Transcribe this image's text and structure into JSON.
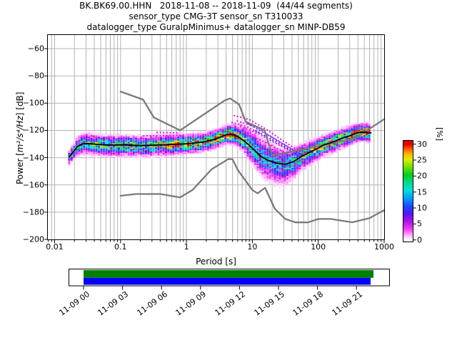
{
  "figure": {
    "title_lines": [
      "BK.BK69.00.HHN   2018-11-08 -- 2018-11-09  (44/44 segments)",
      "sensor_type CMG-3T sensor_sn T310033",
      "datalogger_type GuralpMinimus+ datalogger_sn MINP-DB59"
    ],
    "background": "#ffffff"
  },
  "axes": {
    "xlabel": "Period [s]",
    "ylabel_prefix": "Power [",
    "ylabel_math": "m²/s⁴/Hz",
    "ylabel_suffix": "] [dB]",
    "x_tick_values": [
      0.01,
      0.1,
      1,
      10,
      100,
      1000
    ],
    "x_tick_labels": [
      "0.01",
      "0.1",
      "1",
      "10",
      "100",
      "1000"
    ],
    "y_tick_values": [
      -60,
      -80,
      -100,
      -120,
      -140,
      -160,
      -180,
      -200
    ],
    "y_tick_labels": [
      "−60",
      "−80",
      "−100",
      "−120",
      "−140",
      "−160",
      "−180",
      "−200"
    ],
    "grid_color": "#b4b4b4",
    "frame_color": "#000000"
  },
  "colorbar": {
    "label": "[%]",
    "tick_values": [
      30,
      25,
      20,
      15,
      10,
      5,
      0
    ],
    "tick_labels": [
      "30",
      "25",
      "20",
      "15",
      "10",
      "5",
      "0"
    ],
    "colormap_stops": [
      [
        0.0,
        "#ffffff"
      ],
      [
        0.05,
        "#ffb0ff"
      ],
      [
        0.11,
        "#fa3cfa"
      ],
      [
        0.19,
        "#b414e6"
      ],
      [
        0.27,
        "#5a14f0"
      ],
      [
        0.35,
        "#1e46ff"
      ],
      [
        0.44,
        "#00a0ff"
      ],
      [
        0.52,
        "#00e0dc"
      ],
      [
        0.6,
        "#00dc8c"
      ],
      [
        0.68,
        "#00cd1e"
      ],
      [
        0.77,
        "#78e600"
      ],
      [
        0.84,
        "#e1ee00"
      ],
      [
        0.9,
        "#ffb400"
      ],
      [
        0.95,
        "#ff5a00"
      ],
      [
        1.0,
        "#e10000"
      ]
    ]
  },
  "chart_data": {
    "type": "heatmap",
    "title": "PPSD probabilistic power spectral density",
    "x_scale": "log",
    "xlim_s": [
      0.008,
      1000
    ],
    "ylim_db": [
      -200,
      -50
    ],
    "probability_pct_range": [
      0,
      30
    ],
    "noise_model_color": "#7a7a7a",
    "mode_line_color": "#000000",
    "psd_mode_curve": [
      [
        0.0167,
        -139.5
      ],
      [
        0.019,
        -136.0
      ],
      [
        0.022,
        -132.0
      ],
      [
        0.026,
        -130.0
      ],
      [
        0.032,
        -129.6
      ],
      [
        0.045,
        -130.3
      ],
      [
        0.07,
        -130.8
      ],
      [
        0.12,
        -130.6
      ],
      [
        0.2,
        -131.2
      ],
      [
        0.35,
        -130.8
      ],
      [
        0.6,
        -130.3
      ],
      [
        1.0,
        -129.8
      ],
      [
        1.8,
        -128.6
      ],
      [
        2.8,
        -126.3
      ],
      [
        4.2,
        -122.8
      ],
      [
        5.2,
        -123.2
      ],
      [
        6.5,
        -125.5
      ],
      [
        8.0,
        -128.8
      ],
      [
        10,
        -133.0
      ],
      [
        13,
        -138.6
      ],
      [
        17,
        -141.8
      ],
      [
        23,
        -144.0
      ],
      [
        32,
        -144.8
      ],
      [
        42,
        -143.0
      ],
      [
        57,
        -138.8
      ],
      [
        75,
        -136.0
      ],
      [
        100,
        -133.0
      ],
      [
        120,
        -130.8
      ],
      [
        180,
        -128.0
      ],
      [
        235,
        -125.5
      ],
      [
        300,
        -124.0
      ],
      [
        380,
        -122.0
      ],
      [
        430,
        -121.4
      ],
      [
        530,
        -121.4
      ],
      [
        590,
        -122.0
      ],
      [
        630,
        -121.8
      ]
    ],
    "psd_spread_down_up_peakpct": [
      [
        0.0167,
        2.5,
        2.0,
        14
      ],
      [
        0.022,
        3.0,
        3.0,
        15
      ],
      [
        0.03,
        3.5,
        3.5,
        16
      ],
      [
        0.05,
        3.5,
        3.0,
        20
      ],
      [
        0.1,
        3.5,
        3.0,
        22
      ],
      [
        0.3,
        3.5,
        3.0,
        22
      ],
      [
        0.8,
        3.2,
        3.0,
        24
      ],
      [
        2,
        3.0,
        2.8,
        26
      ],
      [
        4.5,
        2.8,
        2.8,
        30
      ],
      [
        7,
        3.5,
        4.5,
        20
      ],
      [
        10,
        5.0,
        6.0,
        15
      ],
      [
        15,
        6.5,
        6.5,
        13
      ],
      [
        25,
        7.0,
        5.5,
        13
      ],
      [
        38,
        6.0,
        4.5,
        15
      ],
      [
        55,
        4.5,
        4.0,
        18
      ],
      [
        80,
        4.0,
        3.5,
        21
      ],
      [
        120,
        3.5,
        3.0,
        23
      ],
      [
        200,
        3.3,
        3.0,
        25
      ],
      [
        300,
        3.0,
        3.0,
        27
      ],
      [
        430,
        2.8,
        2.8,
        30
      ],
      [
        590,
        2.8,
        2.8,
        30
      ]
    ],
    "noise_model_high_nhnm": [
      [
        0.1,
        -91.5
      ],
      [
        0.22,
        -97.4
      ],
      [
        0.32,
        -110.5
      ],
      [
        0.8,
        -120.0
      ],
      [
        3.8,
        -98.0
      ],
      [
        4.6,
        -96.5
      ],
      [
        6.3,
        -101.0
      ],
      [
        7.9,
        -113.5
      ],
      [
        15.4,
        -120.0
      ],
      [
        20,
        -138.5
      ],
      [
        354.8,
        -126.0
      ],
      [
        1000,
        -111.8
      ]
    ],
    "noise_model_low_nlnm": [
      [
        0.1,
        -168.0
      ],
      [
        0.17,
        -166.7
      ],
      [
        0.4,
        -166.7
      ],
      [
        0.8,
        -169.2
      ],
      [
        1.24,
        -163.7
      ],
      [
        2.4,
        -148.6
      ],
      [
        4.3,
        -141.1
      ],
      [
        5,
        -141.1
      ],
      [
        6,
        -149.0
      ],
      [
        10,
        -163.7
      ],
      [
        12,
        -166.2
      ],
      [
        15.6,
        -162.1
      ],
      [
        21.9,
        -177.5
      ],
      [
        31.6,
        -185.0
      ],
      [
        45,
        -187.5
      ],
      [
        70,
        -187.5
      ],
      [
        101,
        -185.0
      ],
      [
        154,
        -185.0
      ],
      [
        328,
        -187.5
      ],
      [
        600,
        -184.4
      ],
      [
        1000,
        -178.5
      ]
    ],
    "outlier_traces": [
      {
        "color": "#e600e6",
        "points": [
          [
            5.2,
            -109
          ],
          [
            9,
            -112
          ],
          [
            16,
            -119
          ],
          [
            30,
            -128
          ],
          [
            55,
            -136
          ]
        ]
      },
      {
        "color": "#e600e6",
        "points": [
          [
            5.8,
            -113
          ],
          [
            11,
            -117
          ],
          [
            20,
            -125
          ],
          [
            38,
            -133
          ],
          [
            62,
            -139
          ]
        ]
      },
      {
        "color": "#e600e6",
        "points": [
          [
            6.5,
            -117
          ],
          [
            13,
            -123
          ],
          [
            26,
            -131
          ],
          [
            48,
            -138
          ]
        ]
      },
      {
        "color": "#e600e6",
        "points": [
          [
            7.5,
            -122
          ],
          [
            16,
            -129
          ],
          [
            33,
            -137
          ]
        ]
      },
      {
        "color": "#e600e6",
        "points": [
          [
            4.8,
            -114
          ],
          [
            8,
            -117
          ],
          [
            14,
            -123
          ]
        ]
      },
      {
        "color": "#e600e6",
        "points": [
          [
            0.22,
            -124
          ],
          [
            1.0,
            -123.5
          ]
        ]
      },
      {
        "color": "#e600e6",
        "points": [
          [
            0.35,
            -121.5
          ],
          [
            0.75,
            -121.8
          ]
        ]
      },
      {
        "color": "#e600e6",
        "points": [
          [
            400,
            -118.5
          ],
          [
            590,
            -118.0
          ]
        ]
      },
      {
        "color": "#e600e6",
        "points": [
          [
            380,
            -127.0
          ],
          [
            560,
            -126.5
          ]
        ]
      },
      {
        "color": "#2a2af0",
        "points": [
          [
            8.5,
            -115
          ],
          [
            18,
            -124
          ],
          [
            40,
            -134
          ],
          [
            60,
            -139
          ]
        ]
      },
      {
        "color": "#2a2af0",
        "points": [
          [
            11,
            -120
          ],
          [
            24,
            -129
          ],
          [
            50,
            -138
          ]
        ]
      }
    ]
  },
  "timeline": {
    "tick_labels": [
      "11-09 00",
      "11-09 03",
      "11-09 06",
      "11-09 09",
      "11-09 12",
      "11-09 15",
      "11-09 18",
      "11-09 21"
    ],
    "box_color": "#000000",
    "bars": [
      {
        "color": "#008000",
        "start_frac": 0.0447,
        "end_frac": 0.951
      },
      {
        "color": "#0000ff",
        "start_frac": 0.0447,
        "end_frac": 0.942
      }
    ]
  }
}
